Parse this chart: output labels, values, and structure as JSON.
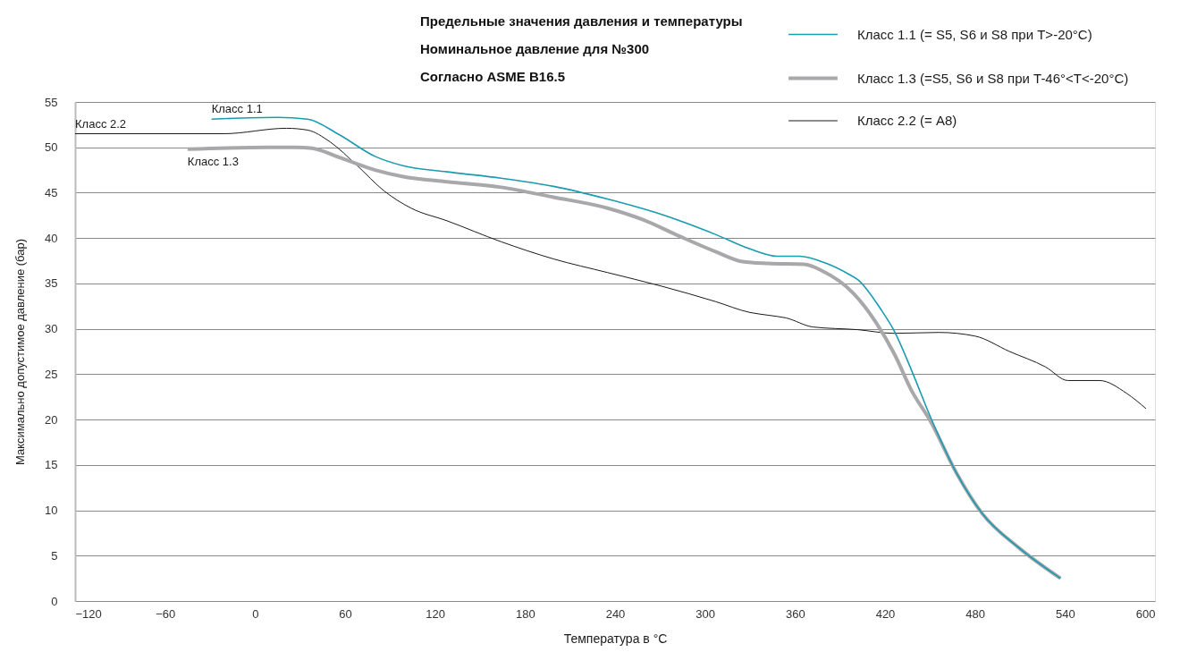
{
  "chart_data": {
    "type": "line",
    "title": "Предельные значения давления и температуры\nНоминальное давление для №300\nСогласно ASME B16.5",
    "xlabel": "Температура в °C",
    "ylabel": "Максимально допустимое давление (бар)",
    "xlim": [
      -120,
      600
    ],
    "xticks": [
      -120,
      -60,
      0,
      60,
      120,
      180,
      240,
      300,
      360,
      420,
      480,
      540,
      600
    ],
    "ylim": [
      0,
      55
    ],
    "yticks": [
      0,
      5,
      10,
      15,
      20,
      25,
      30,
      35,
      40,
      45,
      50,
      55
    ],
    "grid": "y",
    "legend": "top right",
    "marker": "none",
    "line_style": "solid",
    "series": [
      {
        "name": "Класс 1.1 (= S5, S6 и S8 при T>-20°C)",
        "color": "#1a9bb0",
        "x": [
          -29,
          15,
          35,
          56,
          80,
          98,
          128,
          164,
          199,
          235,
          271,
          307,
          330,
          348,
          363,
          381,
          396,
          402,
          417,
          426,
          438,
          450,
          468,
          485,
          509,
          537
        ],
        "values": [
          53.1,
          53.3,
          53.1,
          51.4,
          49.0,
          48.0,
          47.3,
          46.6,
          45.7,
          44.3,
          42.6,
          40.4,
          38.8,
          38.0,
          38.0,
          37.2,
          36.0,
          35.4,
          32.2,
          29.8,
          25.3,
          20.4,
          14.0,
          9.6,
          5.9,
          2.5
        ]
      },
      {
        "name": "Класс 1.3 (=S5, S6 и S8 при T-46°<T<-20°C)",
        "color": "#a8a8ab",
        "x": [
          -45,
          9,
          27,
          38,
          56,
          80,
          98,
          128,
          164,
          199,
          235,
          259,
          283,
          307,
          325,
          342,
          366,
          378,
          399,
          414,
          426,
          438,
          450,
          468,
          485,
          509,
          537
        ],
        "values": [
          49.8,
          50.0,
          50.0,
          49.9,
          48.9,
          47.5,
          46.8,
          46.2,
          45.6,
          44.5,
          43.3,
          42.0,
          40.2,
          38.5,
          37.4,
          37.2,
          37.1,
          36.4,
          33.9,
          30.7,
          27.3,
          23.1,
          19.9,
          14.0,
          9.6,
          5.9,
          2.5
        ]
      },
      {
        "name": "Класс 2.2 (= A8)",
        "color": "#1a1a1a",
        "x": [
          -120,
          -21,
          21,
          35,
          50,
          68,
          86,
          104,
          128,
          164,
          199,
          235,
          271,
          307,
          330,
          342,
          354,
          372,
          402,
          426,
          456,
          480,
          503,
          527,
          542,
          563,
          581,
          594
        ],
        "values": [
          51.5,
          51.5,
          52.1,
          51.9,
          50.6,
          48.0,
          45.2,
          43.3,
          41.9,
          39.6,
          37.7,
          36.2,
          34.7,
          33.0,
          31.8,
          31.5,
          31.2,
          30.2,
          29.9,
          29.5,
          29.6,
          29.2,
          27.5,
          25.8,
          24.3,
          24.3,
          22.9,
          21.2
        ]
      }
    ],
    "annotations": [
      {
        "text": "Класс 1.1",
        "x": -29,
        "y": 53.1
      },
      {
        "text": "Класс 2.2",
        "x": -120,
        "y": 51.5
      },
      {
        "text": "Класс 1.3",
        "x": -45,
        "y": 49.8
      }
    ]
  }
}
